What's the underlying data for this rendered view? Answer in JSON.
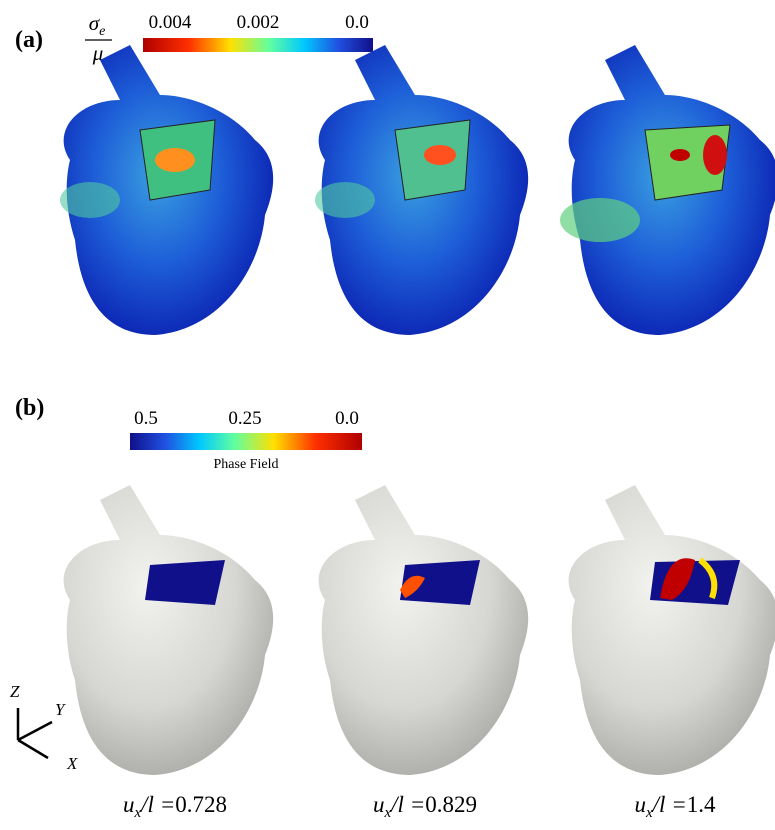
{
  "panel_a": {
    "label": "(a)",
    "colorbar": {
      "symbol": "σ",
      "symbol_sub": "e",
      "denominator": "μ",
      "ticks": [
        "0.004",
        "0.002",
        "0.0"
      ]
    }
  },
  "panel_b": {
    "label": "(b)",
    "colorbar": {
      "ticks": [
        "0.5",
        "0.25",
        "0.0"
      ],
      "title": "Phase Field"
    },
    "axes": {
      "z": "Z",
      "y": "Y",
      "x": "X"
    }
  },
  "captions": [
    {
      "var": "u",
      "sub": "x",
      "rest": "/l =",
      "value": "0.728"
    },
    {
      "var": "u",
      "sub": "x",
      "rest": "/l =",
      "value": "0.829"
    },
    {
      "var": "u",
      "sub": "x",
      "rest": "/l =",
      "value": "1.4"
    }
  ]
}
